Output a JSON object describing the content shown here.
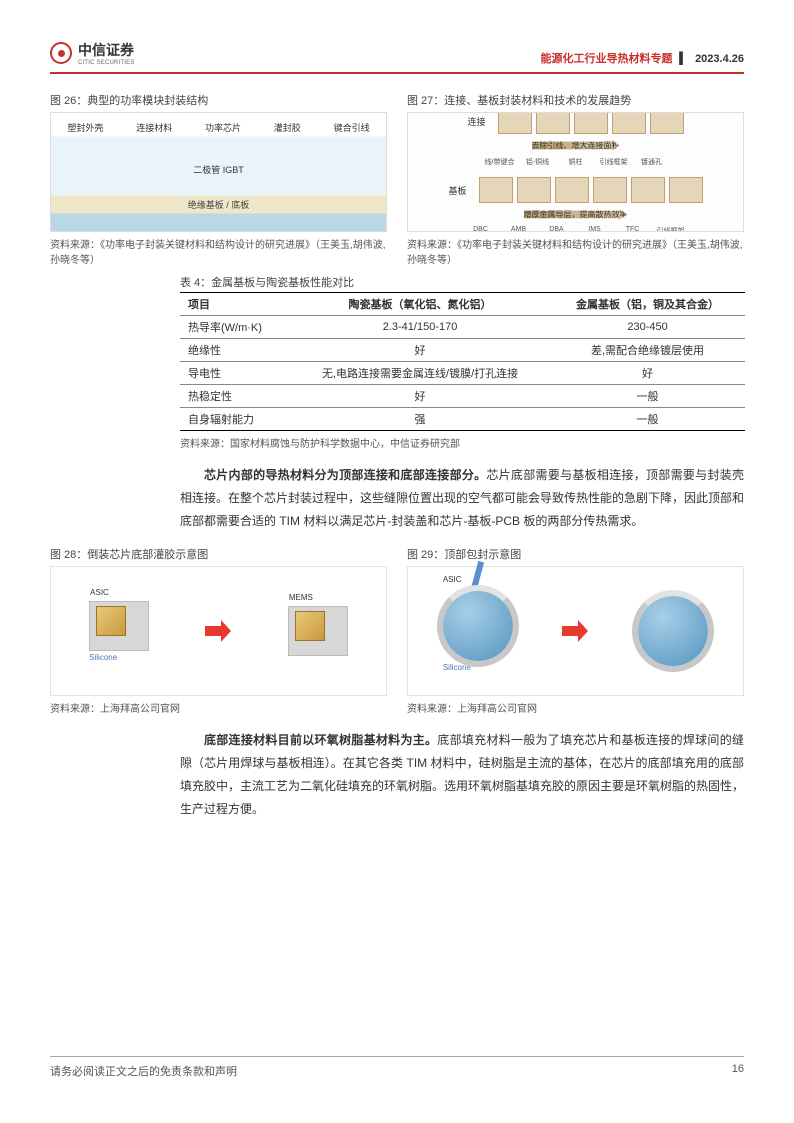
{
  "header": {
    "logo_main": "中信证券",
    "logo_sub": "CITIC SECURITIES",
    "topic": "能源化工行业导热材料专题",
    "date": "2023.4.26"
  },
  "fig26": {
    "caption": "图 26：典型的功率模块封装结构",
    "top_labels": [
      "塑封外壳",
      "连接材料",
      "功率芯片",
      "灌封胶",
      "键合引线"
    ],
    "mid_labels": "二极管    IGBT",
    "bottom_label": "绝缘基板 / 底板",
    "source": "资料来源：《功率电子封装关键材料和结构设计的研究进展》（王美玉,胡伟波,孙晓冬等）"
  },
  "fig27": {
    "caption": "图 27：连接、基板封装材料和技术的发展趋势",
    "row1_tag": "连接",
    "row1_arrow": "去除引线、增大连接面积",
    "row1_labels": [
      "线/带键合",
      "铝-铜线",
      "铜柱",
      "引线框架",
      "镀通孔"
    ],
    "row2_tag": "基板",
    "row2_arrow": "增厚金属导层，提高散热效率",
    "row2_labels": [
      "DBC",
      "AMB",
      "DBA",
      "IMS",
      "TFC",
      "引线框架"
    ],
    "source": "资料来源：《功率电子封装关键材料和结构设计的研究进展》（王美玉,胡伟波,孙晓冬等）"
  },
  "table4": {
    "title": "表 4：金属基板与陶瓷基板性能对比",
    "columns": [
      "项目",
      "陶瓷基板（氧化铝、氮化铝）",
      "金属基板（铝，铜及其合金）"
    ],
    "rows": [
      [
        "热导率(W/m·K)",
        "2.3-41/150-170",
        "230-450"
      ],
      [
        "绝缘性",
        "好",
        "差,需配合绝缘镀层使用"
      ],
      [
        "导电性",
        "无,电路连接需要金属连线/镀膜/打孔连接",
        "好"
      ],
      [
        "热稳定性",
        "好",
        "一般"
      ],
      [
        "自身辐射能力",
        "强",
        "一般"
      ]
    ],
    "source": "资料来源：国家材料腐蚀与防护科学数据中心，中信证券研究部"
  },
  "para1": {
    "bold": "芯片内部的导热材料分为顶部连接和底部连接部分。",
    "text": "芯片底部需要与基板相连接，顶部需要与封装壳相连接。在整个芯片封装过程中，这些缝隙位置出现的空气都可能会导致传热性能的急剧下降，因此顶部和底部都需要合适的 TIM 材料以满足芯片-封装盖和芯片-基板-PCB 板的两部分传热需求。"
  },
  "fig28": {
    "caption": "图 28：倒装芯片底部灌胶示意图",
    "labels": {
      "asic": "ASIC",
      "mems": "MEMS",
      "silicone": "Silicone"
    },
    "source": "资料来源：上海拜高公司官网"
  },
  "fig29": {
    "caption": "图 29：顶部包封示意图",
    "labels": {
      "asic": "ASIC",
      "silicone": "Silicone"
    },
    "source": "资料来源：上海拜高公司官网"
  },
  "para2": {
    "bold": "底部连接材料目前以环氧树脂基材料为主。",
    "text": "底部填充材料一般为了填充芯片和基板连接的焊球间的缝隙（芯片用焊球与基板相连）。在其它各类 TIM 材料中，硅树脂是主流的基体，在芯片的底部填充用的底部填充胶中，主流工艺为二氧化硅填充的环氧树脂。选用环氧树脂基填充胶的原因主要是环氧树脂的热固性，生产过程方便。"
  },
  "footer": {
    "disclaimer": "请务必阅读正文之后的免责条款和声明",
    "page": "16"
  }
}
